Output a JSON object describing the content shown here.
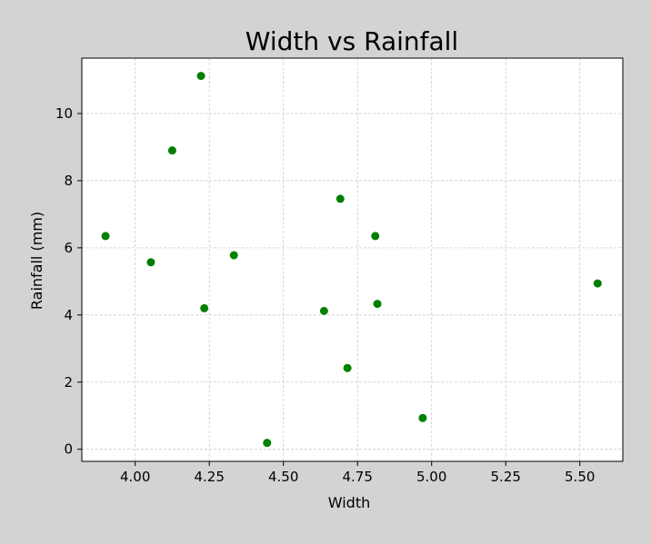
{
  "chart_data": {
    "type": "scatter",
    "title": "Width vs Rainfall",
    "xlabel": "Width",
    "ylabel": "Rainfall (mm)",
    "xlim": [
      3.82,
      5.645
    ],
    "ylim": [
      -0.36,
      11.65
    ],
    "x_ticks": [
      4.0,
      4.25,
      4.5,
      4.75,
      5.0,
      5.25,
      5.5
    ],
    "x_tick_labels": [
      "4.00",
      "4.25",
      "4.50",
      "4.75",
      "5.00",
      "5.25",
      "5.50"
    ],
    "y_ticks": [
      0,
      2,
      4,
      6,
      8,
      10
    ],
    "y_tick_labels": [
      "0",
      "2",
      "4",
      "6",
      "8",
      "10"
    ],
    "grid": true,
    "series": [
      {
        "color": "#008000",
        "points": [
          {
            "x": 3.9,
            "y": 6.35
          },
          {
            "x": 4.053,
            "y": 5.57
          },
          {
            "x": 4.125,
            "y": 8.9
          },
          {
            "x": 4.222,
            "y": 11.12
          },
          {
            "x": 4.233,
            "y": 4.2
          },
          {
            "x": 4.333,
            "y": 5.78
          },
          {
            "x": 4.445,
            "y": 0.19
          },
          {
            "x": 4.637,
            "y": 4.12
          },
          {
            "x": 4.692,
            "y": 7.46
          },
          {
            "x": 4.716,
            "y": 2.42
          },
          {
            "x": 4.81,
            "y": 6.35
          },
          {
            "x": 4.817,
            "y": 4.33
          },
          {
            "x": 4.97,
            "y": 0.93
          },
          {
            "x": 5.56,
            "y": 4.94
          }
        ]
      }
    ],
    "background": "#d3d3d3",
    "plot_background": "#ffffff",
    "grid_color": "#cccccc"
  }
}
